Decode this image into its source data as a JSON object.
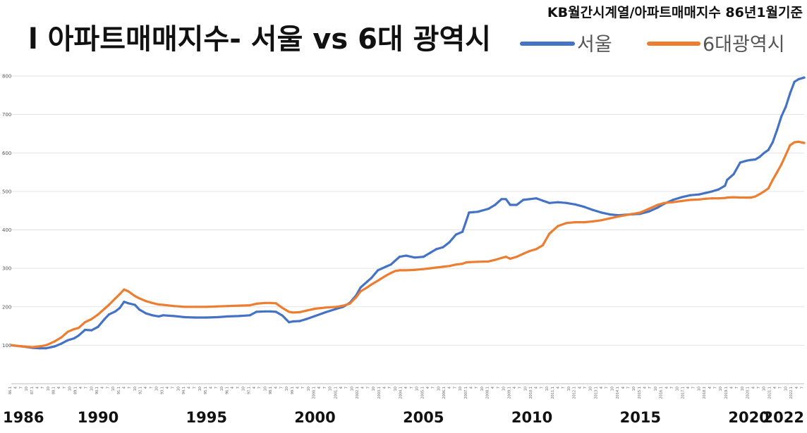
{
  "chart_data": {
    "type": "line",
    "title": "l 아파트매매지수- 서울 vs 6대 광역시",
    "subtitle": "KB월간시계열/아파트매매지수 86년1월기준",
    "xlabel": "",
    "ylabel": "",
    "ylim": [
      0,
      800
    ],
    "yticks": [
      0,
      100,
      200,
      300,
      400,
      500,
      600,
      700,
      800
    ],
    "xlim": [
      1986.0,
      2022.55
    ],
    "grid": true,
    "legend": "top-right",
    "year_labels": [
      1986,
      1990,
      1995,
      2000,
      2005,
      2010,
      2015,
      2020,
      2022
    ],
    "tick_labels": [
      "86.1",
      "4",
      "7",
      "10",
      "87.1",
      "4",
      "7",
      "10",
      "88.1",
      "4",
      "7",
      "10",
      "89.1",
      "4",
      "7",
      "10",
      "90.1",
      "4",
      "7",
      "10",
      "91.1",
      "4",
      "7",
      "10",
      "92.1",
      "4",
      "7",
      "10",
      "93.1",
      "4",
      "7",
      "10",
      "94.1",
      "4",
      "7",
      "10",
      "95.1",
      "4",
      "7",
      "10",
      "96.1",
      "4",
      "7",
      "10",
      "97.1",
      "4",
      "7",
      "10",
      "98.1",
      "4",
      "7",
      "10",
      "99.1",
      "4",
      "7",
      "10",
      "2000.1",
      "4",
      "7",
      "10",
      "2001.1",
      "4",
      "7",
      "10",
      "2002.1",
      "4",
      "7",
      "10",
      "2003.1",
      "4",
      "7",
      "10",
      "2004.1",
      "4",
      "7",
      "10",
      "2005.1",
      "4",
      "7",
      "10",
      "2006.1",
      "4",
      "7",
      "10",
      "2007.1",
      "4",
      "7",
      "10",
      "2008.1",
      "4",
      "7",
      "10",
      "2009.1",
      "4",
      "7",
      "10",
      "2010.1",
      "4",
      "7",
      "10",
      "2011.1",
      "4",
      "7",
      "10",
      "2012.1",
      "4",
      "7",
      "10",
      "2013.1",
      "4",
      "7",
      "10",
      "2014.1",
      "4",
      "7",
      "10",
      "2015.1",
      "4",
      "7",
      "10",
      "2016.1",
      "4",
      "7",
      "10",
      "2017.1",
      "4",
      "7",
      "10",
      "2018.1",
      "4",
      "7",
      "10",
      "2019.1",
      "4",
      "7",
      "10",
      "2020.1",
      "4",
      "7",
      "10",
      "2021.1",
      "4",
      "7",
      "10",
      "2022.1",
      "4",
      "7"
    ],
    "series": [
      {
        "name": "서울",
        "color": "#4472C4",
        "x": [
          1986.0,
          1986.5,
          1987.0,
          1987.3,
          1987.6,
          1988.0,
          1988.3,
          1988.6,
          1988.9,
          1989.1,
          1989.4,
          1989.7,
          1990.0,
          1990.3,
          1990.5,
          1990.8,
          1991.0,
          1991.2,
          1991.4,
          1991.7,
          1991.9,
          1992.2,
          1992.5,
          1992.8,
          1993.0,
          1993.5,
          1994.0,
          1994.5,
          1995.0,
          1995.5,
          1996.0,
          1996.5,
          1997.0,
          1997.3,
          1997.7,
          1997.95,
          1998.2,
          1998.5,
          1998.8,
          1999.0,
          1999.3,
          1999.6,
          2000.0,
          2000.5,
          2001.0,
          2001.3,
          2001.6,
          2001.9,
          2002.1,
          2002.4,
          2002.6,
          2002.9,
          2003.1,
          2003.3,
          2003.5,
          2003.7,
          2003.9,
          2004.2,
          2004.6,
          2005.0,
          2005.3,
          2005.6,
          2005.9,
          2006.2,
          2006.5,
          2006.8,
          2006.95,
          2007.1,
          2007.5,
          2008.0,
          2008.3,
          2008.6,
          2008.8,
          2009.0,
          2009.3,
          2009.6,
          2009.9,
          2010.2,
          2010.5,
          2010.8,
          2011.2,
          2011.6,
          2012.0,
          2012.4,
          2012.8,
          2013.2,
          2013.6,
          2014.0,
          2014.5,
          2015.0,
          2015.4,
          2015.8,
          2016.1,
          2016.5,
          2016.9,
          2017.3,
          2017.7,
          2018.0,
          2018.3,
          2018.6,
          2018.9,
          2019.0,
          2019.3,
          2019.6,
          2019.9,
          2020.1,
          2020.3,
          2020.5,
          2020.7,
          2020.9,
          2021.1,
          2021.3,
          2021.5,
          2021.7,
          2021.9,
          2022.1,
          2022.3,
          2022.55
        ],
        "values": [
          100,
          97,
          93,
          92,
          92,
          97,
          104,
          113,
          118,
          125,
          140,
          139,
          148,
          168,
          180,
          188,
          197,
          213,
          209,
          205,
          193,
          183,
          178,
          175,
          178,
          176,
          173,
          172,
          172,
          173,
          175,
          176,
          178,
          187,
          188,
          188,
          187,
          177,
          160,
          162,
          163,
          168,
          176,
          186,
          195,
          200,
          210,
          230,
          250,
          265,
          275,
          295,
          300,
          305,
          310,
          320,
          330,
          333,
          328,
          330,
          340,
          350,
          355,
          368,
          388,
          395,
          420,
          445,
          447,
          455,
          465,
          480,
          480,
          465,
          465,
          478,
          480,
          482,
          476,
          470,
          472,
          470,
          466,
          460,
          452,
          445,
          440,
          438,
          440,
          442,
          448,
          458,
          468,
          478,
          485,
          490,
          492,
          496,
          500,
          505,
          515,
          530,
          545,
          575,
          580,
          582,
          583,
          590,
          600,
          608,
          628,
          660,
          695,
          720,
          755,
          785,
          792,
          796
        ]
      },
      {
        "name": "6대광역시",
        "color": "#ED7D31",
        "x": [
          1986.0,
          1986.5,
          1987.0,
          1987.3,
          1987.6,
          1988.0,
          1988.3,
          1988.6,
          1988.9,
          1989.1,
          1989.4,
          1989.7,
          1990.0,
          1990.3,
          1990.5,
          1990.8,
          1991.0,
          1991.2,
          1991.4,
          1991.7,
          1991.9,
          1992.2,
          1992.5,
          1992.8,
          1993.0,
          1993.5,
          1994.0,
          1994.5,
          1995.0,
          1995.5,
          1996.0,
          1996.5,
          1997.0,
          1997.3,
          1997.7,
          1997.95,
          1998.2,
          1998.5,
          1998.8,
          1999.0,
          1999.3,
          1999.6,
          2000.0,
          2000.5,
          2001.0,
          2001.3,
          2001.6,
          2001.9,
          2002.1,
          2002.4,
          2002.6,
          2002.9,
          2003.1,
          2003.3,
          2003.5,
          2003.7,
          2003.9,
          2004.2,
          2004.6,
          2005.0,
          2005.3,
          2005.6,
          2005.9,
          2006.2,
          2006.5,
          2006.8,
          2006.95,
          2007.1,
          2007.5,
          2008.0,
          2008.3,
          2008.6,
          2008.8,
          2009.0,
          2009.3,
          2009.6,
          2009.9,
          2010.2,
          2010.5,
          2010.8,
          2011.2,
          2011.6,
          2012.0,
          2012.4,
          2012.8,
          2013.2,
          2013.6,
          2014.0,
          2014.5,
          2015.0,
          2015.4,
          2015.8,
          2016.1,
          2016.5,
          2016.9,
          2017.3,
          2017.7,
          2018.0,
          2018.3,
          2018.6,
          2018.9,
          2019.0,
          2019.3,
          2019.6,
          2019.9,
          2020.1,
          2020.3,
          2020.5,
          2020.7,
          2020.9,
          2021.1,
          2021.3,
          2021.5,
          2021.7,
          2021.9,
          2022.1,
          2022.3,
          2022.55
        ],
        "values": [
          100,
          97,
          95,
          97,
          100,
          110,
          120,
          135,
          142,
          145,
          160,
          168,
          180,
          195,
          205,
          222,
          233,
          245,
          240,
          228,
          222,
          215,
          210,
          206,
          205,
          202,
          200,
          200,
          200,
          201,
          202,
          203,
          204,
          208,
          210,
          210,
          209,
          197,
          187,
          185,
          186,
          190,
          195,
          198,
          200,
          203,
          208,
          225,
          240,
          250,
          258,
          268,
          275,
          282,
          288,
          293,
          295,
          295,
          296,
          298,
          300,
          302,
          304,
          306,
          310,
          312,
          315,
          316,
          317,
          318,
          322,
          327,
          330,
          325,
          330,
          338,
          345,
          350,
          360,
          390,
          410,
          418,
          420,
          420,
          422,
          425,
          430,
          435,
          440,
          445,
          455,
          465,
          470,
          472,
          475,
          478,
          479,
          481,
          482,
          482,
          483,
          484,
          485,
          484,
          484,
          484,
          487,
          493,
          500,
          508,
          530,
          550,
          570,
          595,
          620,
          628,
          629,
          626
        ]
      }
    ]
  }
}
